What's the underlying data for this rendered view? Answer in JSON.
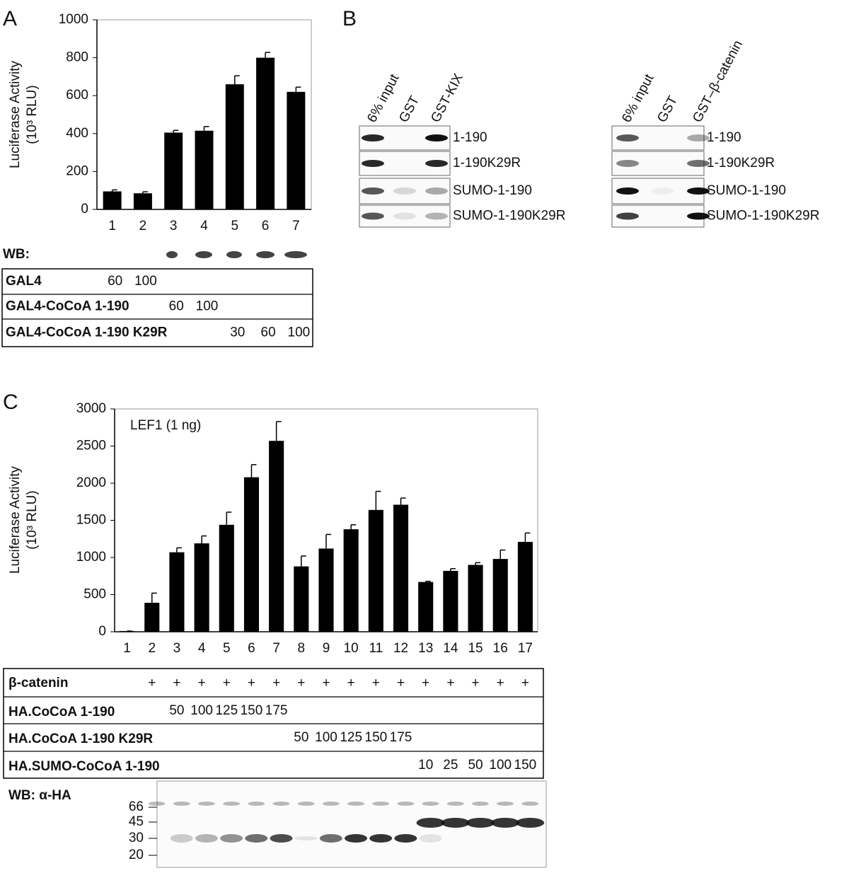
{
  "panel_labels": [
    "A",
    "B",
    "C"
  ],
  "chart_data": [
    {
      "type": "bar",
      "ylabel": [
        "Luciferase Activity",
        "(10³ RLU)"
      ],
      "categories": [
        "1",
        "2",
        "3",
        "4",
        "5",
        "6",
        "7"
      ],
      "values": [
        95,
        85,
        405,
        415,
        660,
        800,
        620
      ],
      "errors": [
        8,
        8,
        12,
        22,
        45,
        28,
        25
      ],
      "color": "#000000",
      "ylim": [
        0,
        1000
      ],
      "yticks": [
        0,
        200,
        400,
        600,
        800,
        1000
      ]
    },
    {
      "type": "bar",
      "ylabel": [
        "Luciferase Activity",
        "(10³ RLU)"
      ],
      "annotation": "LEF1 (1 ng)",
      "categories": [
        "1",
        "2",
        "3",
        "4",
        "5",
        "6",
        "7",
        "8",
        "9",
        "10",
        "11",
        "12",
        "13",
        "14",
        "15",
        "16",
        "17"
      ],
      "values": [
        10,
        390,
        1070,
        1190,
        1440,
        2080,
        2570,
        880,
        1120,
        1380,
        1640,
        1710,
        670,
        820,
        900,
        980,
        1210
      ],
      "errors": [
        0,
        130,
        60,
        100,
        170,
        170,
        260,
        140,
        190,
        60,
        250,
        90,
        10,
        30,
        30,
        120,
        120
      ],
      "color": "#000000",
      "ylim": [
        0,
        3000
      ],
      "yticks": [
        0,
        500,
        1000,
        1500,
        2000,
        2500,
        3000
      ]
    }
  ],
  "table_a": {
    "title": "WB:",
    "rows": [
      {
        "label": "GAL4",
        "cells": [
          "60",
          "100",
          null,
          null,
          null,
          null,
          null
        ]
      },
      {
        "label": "GAL4-CoCoA 1-190",
        "cells": [
          null,
          null,
          "60",
          "100",
          null,
          null,
          null
        ]
      },
      {
        "label": "GAL4-CoCoA 1-190 K29R",
        "cells": [
          null,
          null,
          null,
          null,
          "30",
          "60",
          "100"
        ]
      }
    ]
  },
  "table_c": {
    "rows": [
      {
        "label": "β-catenin",
        "cells": [
          null,
          "+",
          "+",
          "+",
          "+",
          "+",
          "+",
          "+",
          "+",
          "+",
          "+",
          "+",
          "+",
          "+",
          "+",
          "+",
          "+"
        ]
      },
      {
        "label": "HA.CoCoA 1-190",
        "cells": [
          null,
          null,
          "50",
          "100",
          "125",
          "150",
          "175",
          null,
          null,
          null,
          null,
          null,
          null,
          null,
          null,
          null,
          null
        ]
      },
      {
        "label": "HA.CoCoA 1-190 K29R",
        "cells": [
          null,
          null,
          null,
          null,
          null,
          null,
          null,
          "50",
          "100",
          "125",
          "150",
          "175",
          null,
          null,
          null,
          null,
          null
        ]
      },
      {
        "label": "HA.SUMO-CoCoA 1-190",
        "cells": [
          null,
          null,
          null,
          null,
          null,
          null,
          null,
          null,
          null,
          null,
          null,
          null,
          "10",
          "25",
          "50",
          "100",
          "150"
        ]
      }
    ]
  },
  "blot_c": {
    "title": "WB: α-HA",
    "markers": [
      "66",
      "45",
      "30",
      "20"
    ]
  },
  "panel_b": {
    "left": {
      "columns": [
        "6% input",
        "GST",
        "GST-KIX"
      ],
      "rows": [
        "1-190",
        "1-190K29R",
        "SUMO-1-190",
        "SUMO-1-190K29R"
      ]
    },
    "right": {
      "columns": [
        "6% input",
        "GST",
        "GST–β-catenin"
      ],
      "rows": [
        "1-190",
        "1-190K29R",
        "SUMO-1-190",
        "SUMO-1-190K29R"
      ]
    }
  }
}
